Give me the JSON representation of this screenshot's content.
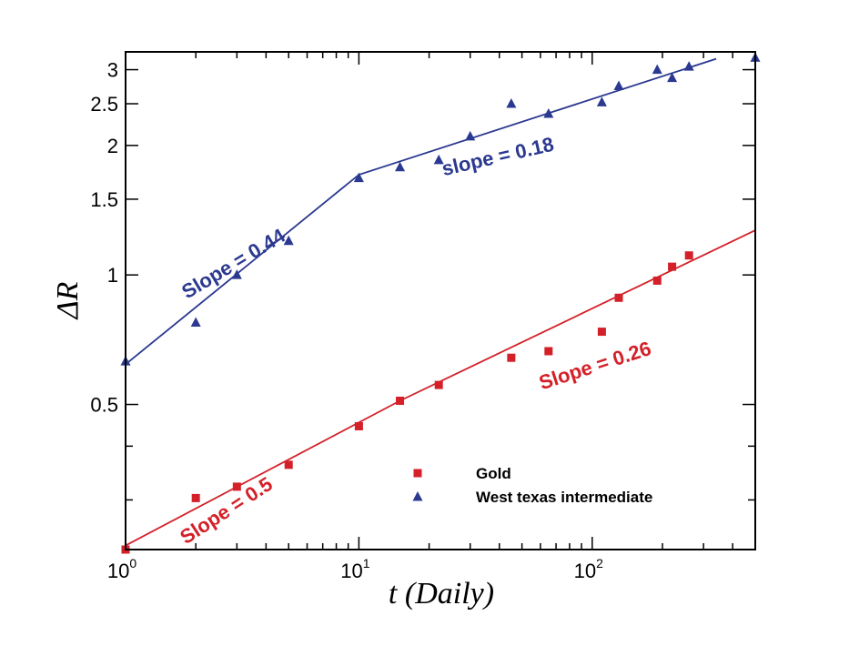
{
  "chart_data": {
    "type": "scatter",
    "xscale": "log",
    "yscale": "log",
    "xlim": [
      1,
      500
    ],
    "ylim": [
      0.23,
      3.3
    ],
    "xlabel": "t (Daily)",
    "ylabel": "ΔR",
    "x_ticks": [
      {
        "value": 1,
        "base": "10",
        "exp": "0"
      },
      {
        "value": 10,
        "base": "10",
        "exp": "1"
      },
      {
        "value": 100,
        "base": "10",
        "exp": "2"
      }
    ],
    "y_ticks": [
      {
        "value": 0.5,
        "label": "0.5"
      },
      {
        "value": 1,
        "label": "1"
      },
      {
        "value": 1.5,
        "label": "1.5"
      },
      {
        "value": 2,
        "label": "2"
      },
      {
        "value": 2.5,
        "label": "2.5"
      },
      {
        "value": 3,
        "label": "3"
      }
    ],
    "y_minor_ticks": [
      0.3,
      0.4
    ],
    "series": [
      {
        "name": "Gold",
        "color": "#d42028",
        "marker": "square",
        "points": [
          [
            1,
            0.23
          ],
          [
            2,
            0.303
          ],
          [
            3,
            0.322
          ],
          [
            5,
            0.362
          ],
          [
            10,
            0.445
          ],
          [
            15,
            0.51
          ],
          [
            22,
            0.555
          ],
          [
            45,
            0.642
          ],
          [
            65,
            0.665
          ],
          [
            110,
            0.738
          ],
          [
            130,
            0.885
          ],
          [
            190,
            0.97
          ],
          [
            220,
            1.045
          ],
          [
            260,
            1.11
          ]
        ],
        "fit": [
          [
            1,
            0.235
          ],
          [
            15,
            0.51
          ],
          [
            500,
            1.27
          ]
        ]
      },
      {
        "name": "West texas intermediate",
        "color": "#2b3990",
        "marker": "triangle",
        "points": [
          [
            1,
            0.63
          ],
          [
            2,
            0.775
          ],
          [
            3,
            1.0
          ],
          [
            5,
            1.2
          ],
          [
            10,
            1.68
          ],
          [
            15,
            1.78
          ],
          [
            22,
            1.85
          ],
          [
            30,
            2.1
          ],
          [
            45,
            2.5
          ],
          [
            65,
            2.37
          ],
          [
            110,
            2.52
          ],
          [
            130,
            2.75
          ],
          [
            190,
            3.0
          ],
          [
            220,
            2.87
          ],
          [
            260,
            3.05
          ],
          [
            500,
            3.2
          ]
        ],
        "fit": [
          [
            1,
            0.62
          ],
          [
            10,
            1.71
          ],
          [
            340,
            3.18
          ]
        ]
      }
    ],
    "annotations": [
      {
        "text": "Slope = 0.44",
        "color": "#2b3990",
        "x": 3.0,
        "y": 1.03,
        "angle": -31
      },
      {
        "text": "slope = 0.18",
        "color": "#2b3990",
        "x": 40,
        "y": 1.82,
        "angle": -13
      },
      {
        "text": "Slope = 0.5",
        "color": "#d42028",
        "x": 2.8,
        "y": 0.275,
        "angle": -33
      },
      {
        "text": "Slope = 0.26",
        "color": "#d42028",
        "x": 105,
        "y": 0.595,
        "angle": -18
      }
    ],
    "legend": {
      "position": "bottom-right"
    }
  }
}
